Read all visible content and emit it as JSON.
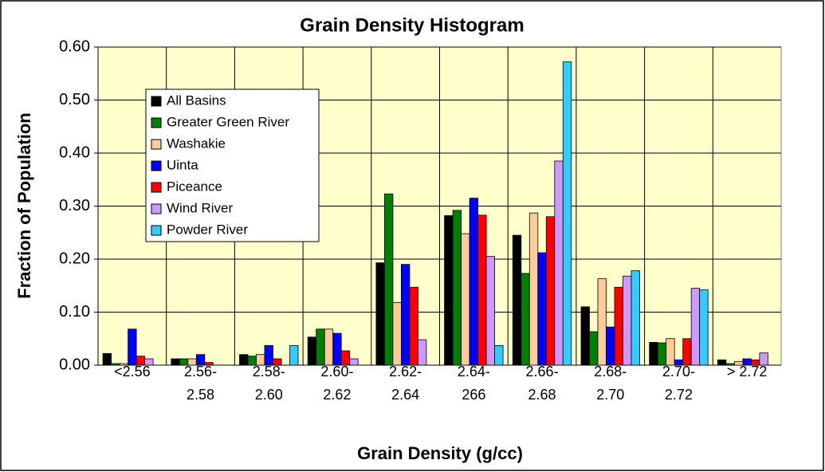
{
  "chart_data": {
    "type": "bar",
    "title": "Grain Density Histogram",
    "xlabel": "Grain Density (g/cc)",
    "ylabel": "Fraction of Population",
    "categories": [
      "<2.56",
      "2.56-2.58",
      "2.58-2.60",
      "2.60-2.62",
      "2.62-2.64",
      "2.64-266",
      "2.66-2.68",
      "2.68-2.70",
      "2.70-2.72",
      "> 2.72"
    ],
    "series": [
      {
        "name": "All Basins",
        "color": "#000000",
        "values": [
          0.022,
          0.012,
          0.02,
          0.053,
          0.193,
          0.282,
          0.245,
          0.11,
          0.043,
          0.01
        ]
      },
      {
        "name": "Greater Green River",
        "color": "#008000",
        "values": [
          0.003,
          0.012,
          0.017,
          0.068,
          0.323,
          0.292,
          0.173,
          0.063,
          0.042,
          0.003
        ]
      },
      {
        "name": "Washakie",
        "color": "#ffcc99",
        "values": [
          0.003,
          0.012,
          0.02,
          0.068,
          0.118,
          0.248,
          0.287,
          0.163,
          0.05,
          0.007
        ]
      },
      {
        "name": "Uinta",
        "color": "#0000ff",
        "values": [
          0.068,
          0.02,
          0.037,
          0.06,
          0.19,
          0.315,
          0.212,
          0.072,
          0.01,
          0.012
        ]
      },
      {
        "name": "Piceance",
        "color": "#ff0000",
        "values": [
          0.017,
          0.005,
          0.012,
          0.027,
          0.147,
          0.283,
          0.28,
          0.147,
          0.05,
          0.01
        ]
      },
      {
        "name": "Wind River",
        "color": "#cc99ff",
        "values": [
          0.012,
          0,
          0,
          0.012,
          0.048,
          0.205,
          0.385,
          0.168,
          0.145,
          0.023
        ]
      },
      {
        "name": "Powder River",
        "color": "#33ccff",
        "values": [
          0,
          0,
          0.037,
          0,
          0,
          0.037,
          0.572,
          0.178,
          0.142,
          0
        ]
      }
    ],
    "ylim": [
      0,
      0.6
    ],
    "yticks": [
      {
        "value": 0,
        "label": "0.00"
      },
      {
        "value": 0.1,
        "label": "0.10"
      },
      {
        "value": 0.2,
        "label": "0.20"
      },
      {
        "value": 0.3,
        "label": "0.30"
      },
      {
        "value": 0.4,
        "label": "0.40"
      },
      {
        "value": 0.5,
        "label": "0.50"
      },
      {
        "value": 0.6,
        "label": "0.60"
      }
    ],
    "grid": true,
    "legend": "upper left"
  }
}
